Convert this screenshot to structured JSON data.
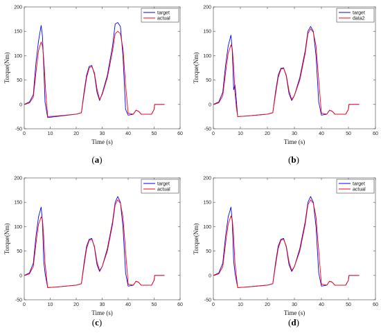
{
  "chart_data": [
    {
      "type": "line",
      "caption": "(a)",
      "xlabel": "Time (s)",
      "ylabel": "Torque(Nm)",
      "xlim": [
        0,
        60
      ],
      "ylim": [
        -50,
        200
      ],
      "xticks": [
        0,
        10,
        20,
        30,
        40,
        50,
        60
      ],
      "yticks": [
        -50,
        0,
        50,
        100,
        150,
        200
      ],
      "grid": false,
      "legend": "top-right",
      "series": [
        {
          "name": "target",
          "color": "#0000ff",
          "x": [
            0,
            2,
            3.5,
            4.5,
            5.5,
            6.5,
            7,
            7.5,
            8,
            9,
            12,
            20,
            22,
            23,
            24,
            25,
            26,
            27,
            28,
            29,
            30,
            32,
            34,
            35,
            36,
            37,
            38,
            39,
            40,
            42,
            43,
            44,
            45,
            49,
            50,
            50.2,
            54
          ],
          "y": [
            0,
            5,
            20,
            85,
            130,
            162,
            140,
            80,
            5,
            -27,
            -25,
            -20,
            -17,
            25,
            60,
            78,
            80,
            62,
            25,
            8,
            22,
            60,
            120,
            165,
            168,
            160,
            100,
            -10,
            -22,
            -20,
            -12,
            -14,
            -20,
            -20,
            -10,
            0,
            0
          ]
        },
        {
          "name": "actual",
          "color": "#ff0000",
          "x": [
            0,
            2,
            3.5,
            4.5,
            5.5,
            6.5,
            7,
            7.5,
            8.2,
            9,
            12,
            20,
            22,
            23,
            24,
            25,
            26,
            27,
            28,
            29,
            30,
            32,
            34,
            35,
            36,
            37,
            38,
            39,
            40,
            42,
            43,
            44,
            45,
            49,
            50,
            50.2,
            54
          ],
          "y": [
            0,
            3,
            15,
            65,
            110,
            128,
            120,
            95,
            30,
            -25,
            -24,
            -20,
            -17,
            20,
            55,
            75,
            78,
            65,
            32,
            10,
            20,
            55,
            110,
            145,
            150,
            145,
            115,
            40,
            -18,
            -20,
            -12,
            -14,
            -20,
            -20,
            -10,
            0,
            0
          ]
        }
      ]
    },
    {
      "type": "line",
      "caption": "(b)",
      "xlabel": "Time (s)",
      "ylabel": "Torque(Nm)",
      "xlim": [
        0,
        60
      ],
      "ylim": [
        -50,
        200
      ],
      "xticks": [
        0,
        10,
        20,
        30,
        40,
        50,
        60
      ],
      "yticks": [
        -50,
        0,
        50,
        100,
        150,
        200
      ],
      "grid": false,
      "legend": "top-right",
      "series": [
        {
          "name": "target",
          "color": "#0000ff",
          "x": [
            0,
            2,
            3.5,
            4.5,
            5.5,
            6.5,
            7,
            7.5,
            8,
            8.5,
            9,
            12,
            20,
            22,
            23,
            24,
            25,
            26,
            27,
            28,
            29,
            30,
            32,
            34,
            35,
            36,
            37,
            38,
            39,
            40,
            42,
            43,
            44,
            45,
            49,
            50,
            50.2,
            54
          ],
          "y": [
            0,
            5,
            25,
            80,
            120,
            142,
            110,
            30,
            40,
            10,
            -25,
            -24,
            -20,
            -17,
            25,
            60,
            74,
            75,
            58,
            22,
            8,
            18,
            55,
            110,
            150,
            160,
            150,
            100,
            5,
            -22,
            -20,
            -12,
            -14,
            -20,
            -20,
            -10,
            0,
            0
          ]
        },
        {
          "name": "data2",
          "color": "#ff0000",
          "x": [
            0,
            2,
            3.5,
            4.5,
            5.5,
            6.5,
            7,
            7.5,
            8,
            8.5,
            9,
            12,
            20,
            22,
            23,
            24,
            25,
            26,
            27,
            28,
            29,
            30,
            32,
            34,
            35,
            36,
            37,
            38,
            39,
            40,
            42,
            43,
            44,
            45,
            49,
            50,
            50.2,
            54
          ],
          "y": [
            0,
            3,
            18,
            65,
            105,
            122,
            115,
            80,
            25,
            -5,
            -25,
            -24,
            -20,
            -17,
            20,
            55,
            72,
            74,
            60,
            28,
            10,
            18,
            50,
            105,
            145,
            155,
            148,
            120,
            50,
            -18,
            -20,
            -12,
            -14,
            -20,
            -20,
            -10,
            0,
            0
          ]
        }
      ]
    },
    {
      "type": "line",
      "caption": "(c)",
      "xlabel": "Time (s)",
      "ylabel": "Torque(Nm)",
      "xlim": [
        0,
        60
      ],
      "ylim": [
        -50,
        200
      ],
      "xticks": [
        0,
        10,
        20,
        30,
        40,
        50,
        60
      ],
      "yticks": [
        -50,
        0,
        50,
        100,
        150,
        200
      ],
      "grid": false,
      "legend": "top-right",
      "series": [
        {
          "name": "target",
          "color": "#0000ff",
          "x": [
            0,
            2,
            3.5,
            4.5,
            5.5,
            6.5,
            7,
            7.5,
            8,
            9,
            12,
            20,
            22,
            23,
            24,
            25,
            26,
            27,
            28,
            29,
            30,
            32,
            34,
            35,
            36,
            37,
            38,
            39,
            40,
            42,
            43,
            44,
            45,
            49,
            50,
            50.2,
            54
          ],
          "y": [
            0,
            5,
            25,
            80,
            120,
            140,
            110,
            30,
            5,
            -25,
            -24,
            -20,
            -17,
            25,
            60,
            74,
            76,
            58,
            22,
            8,
            18,
            55,
            110,
            150,
            162,
            150,
            100,
            5,
            -22,
            -20,
            -12,
            -14,
            -20,
            -20,
            -10,
            0,
            0
          ]
        },
        {
          "name": "actual",
          "color": "#ff0000",
          "x": [
            0,
            2,
            3.5,
            4.5,
            5.5,
            6.5,
            7,
            7.5,
            8,
            9,
            12,
            20,
            22,
            23,
            24,
            25,
            26,
            27,
            28,
            29,
            30,
            32,
            34,
            35,
            36,
            37,
            38,
            39,
            40,
            42,
            43,
            44,
            45,
            49,
            50,
            50.2,
            54
          ],
          "y": [
            0,
            3,
            18,
            65,
            105,
            120,
            115,
            80,
            25,
            -25,
            -24,
            -20,
            -17,
            20,
            55,
            72,
            74,
            60,
            28,
            10,
            18,
            50,
            105,
            145,
            155,
            148,
            120,
            50,
            -18,
            -20,
            -12,
            -14,
            -20,
            -20,
            -10,
            0,
            0
          ]
        }
      ]
    },
    {
      "type": "line",
      "caption": "(d)",
      "xlabel": "Time (s)",
      "ylabel": "Torque(Nm)",
      "xlim": [
        0,
        60
      ],
      "ylim": [
        -50,
        200
      ],
      "xticks": [
        0,
        10,
        20,
        30,
        40,
        50,
        60
      ],
      "yticks": [
        -50,
        0,
        50,
        100,
        150,
        200
      ],
      "grid": false,
      "legend": "top-right",
      "series": [
        {
          "name": "target",
          "color": "#0000ff",
          "x": [
            0,
            2,
            3.5,
            4.5,
            5.5,
            6.5,
            7,
            7.5,
            8,
            9,
            12,
            20,
            22,
            23,
            24,
            25,
            26,
            27,
            28,
            29,
            30,
            32,
            34,
            35,
            36,
            37,
            38,
            39,
            40,
            42,
            43,
            44,
            45,
            49,
            50,
            50.2,
            54
          ],
          "y": [
            0,
            5,
            25,
            80,
            120,
            140,
            110,
            30,
            5,
            -25,
            -24,
            -20,
            -17,
            25,
            60,
            74,
            76,
            58,
            22,
            8,
            18,
            55,
            110,
            150,
            162,
            150,
            100,
            5,
            -22,
            -20,
            -12,
            -14,
            -20,
            -20,
            -10,
            0,
            0
          ]
        },
        {
          "name": "actual",
          "color": "#ff0000",
          "x": [
            0,
            2,
            3.5,
            4.5,
            5.5,
            6.5,
            7,
            7.5,
            8,
            9,
            12,
            20,
            22,
            23,
            24,
            25,
            26,
            27,
            28,
            29,
            30,
            32,
            34,
            35,
            36,
            37,
            38,
            39,
            40,
            42,
            43,
            44,
            45,
            49,
            50,
            50.2,
            54
          ],
          "y": [
            0,
            3,
            18,
            65,
            105,
            122,
            115,
            80,
            25,
            -25,
            -24,
            -20,
            -17,
            20,
            55,
            72,
            74,
            60,
            28,
            10,
            18,
            50,
            105,
            145,
            155,
            148,
            120,
            50,
            -18,
            -20,
            -12,
            -14,
            -20,
            -20,
            -10,
            0,
            0
          ]
        }
      ]
    }
  ]
}
